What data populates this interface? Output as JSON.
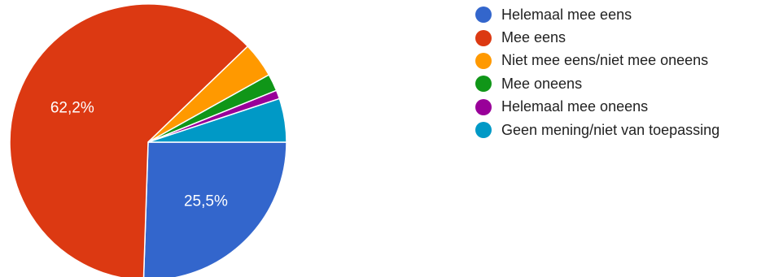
{
  "chart_data": {
    "type": "pie",
    "title": "",
    "legend_position": "right",
    "categories": [
      "Helemaal mee eens",
      "Mee eens",
      "Niet mee eens/niet mee oneens",
      "Mee oneens",
      "Helemaal mee oneens",
      "Geen mening/niet van toepassing"
    ],
    "values": [
      25.5,
      62.2,
      4.1,
      2.0,
      1.0,
      5.1
    ],
    "colors": [
      "#3366cc",
      "#dc3912",
      "#ff9900",
      "#109618",
      "#990099",
      "#0099c6"
    ],
    "data_labels": [
      "25,5%",
      "62,2%",
      "",
      "",
      "",
      ""
    ],
    "start_angle_deg": 90,
    "direction": "clockwise"
  }
}
